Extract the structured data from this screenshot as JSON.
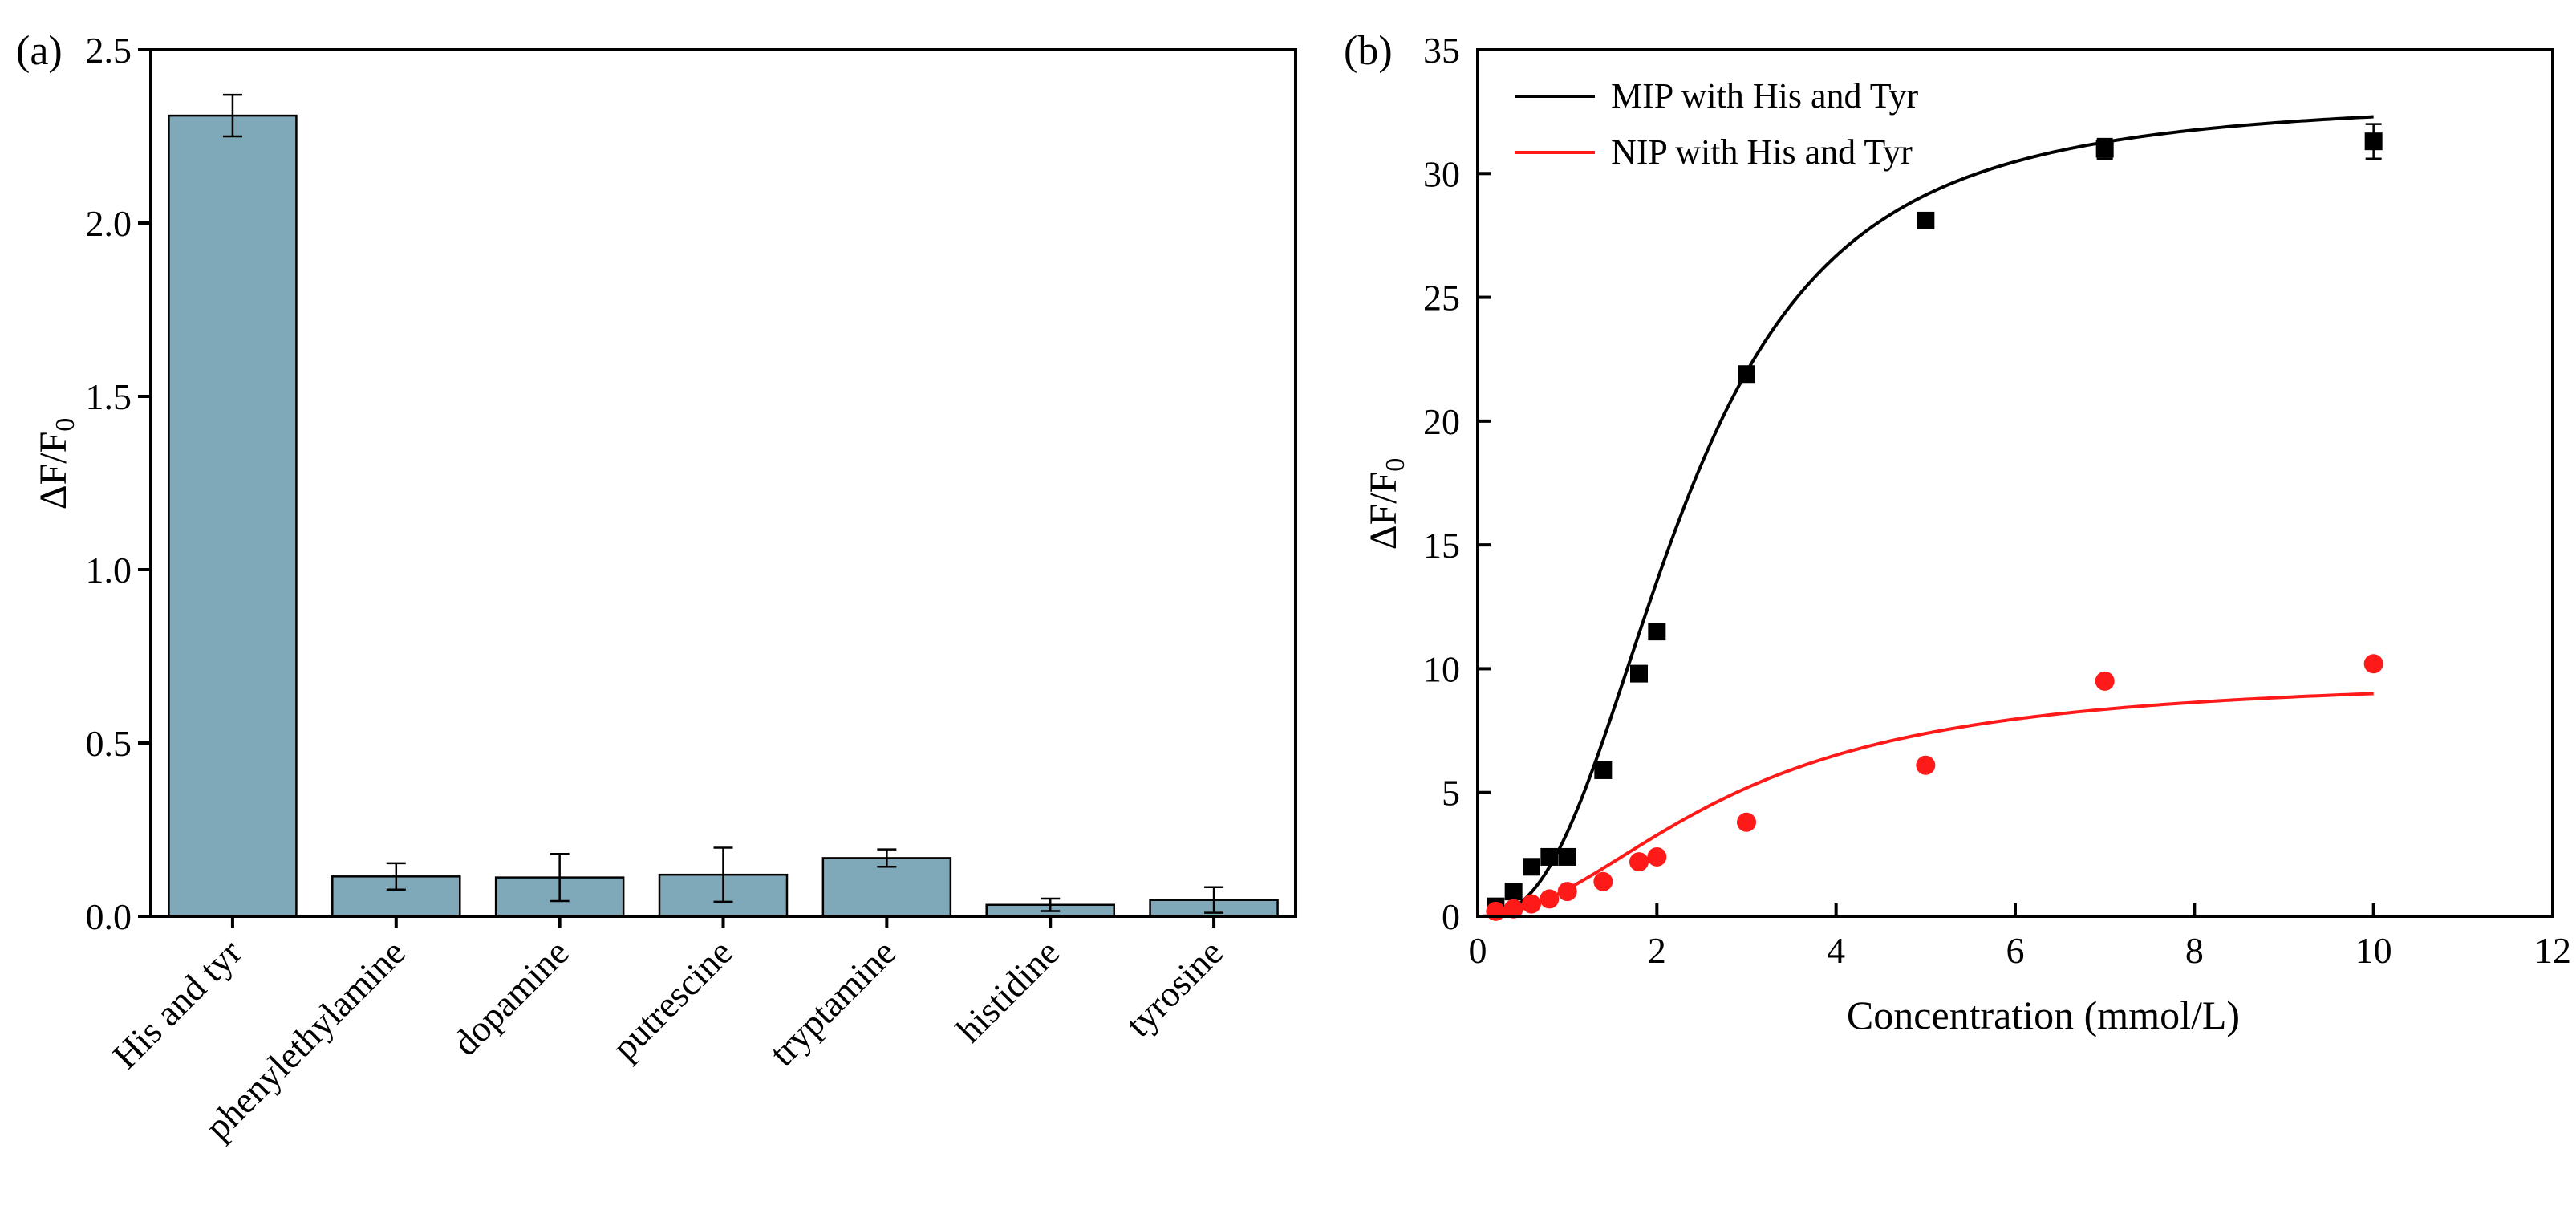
{
  "chart_data": [
    {
      "panel_label": "(a)",
      "type": "bar",
      "xlabel": "",
      "ylabel": "ΔF/F",
      "ylabel_sub": "0",
      "ylim": [
        0,
        2.5
      ],
      "yticks": [
        "0.0",
        "0.5",
        "1.0",
        "1.5",
        "2.0",
        "2.5"
      ],
      "categories": [
        "His and tyr",
        "phenylethylamine",
        "dopamine",
        "putrescine",
        "tryptamine",
        "histidine",
        "tyrosine"
      ],
      "values": [
        2.31,
        0.115,
        0.112,
        0.12,
        0.168,
        0.033,
        0.047
      ],
      "errors": [
        0.06,
        0.038,
        0.068,
        0.078,
        0.025,
        0.018,
        0.037
      ],
      "bar_color": "#7fa9b8",
      "grid": false
    },
    {
      "panel_label": "(b)",
      "type": "scatter",
      "xlabel": "Concentration (mmol/L)",
      "ylabel": "ΔF/F",
      "ylabel_sub": "0",
      "xlim": [
        0,
        12
      ],
      "ylim": [
        0,
        35
      ],
      "xticks": [
        "0",
        "2",
        "4",
        "6",
        "8",
        "10",
        "12"
      ],
      "yticks": [
        "0",
        "5",
        "10",
        "15",
        "20",
        "25",
        "30",
        "35"
      ],
      "legend_position": "top-left",
      "grid": false,
      "series": [
        {
          "name": "MIP with His and Tyr",
          "color": "#000000",
          "marker": "square",
          "x": [
            0.2,
            0.4,
            0.6,
            0.8,
            1.0,
            1.4,
            1.8,
            2.0,
            3.0,
            5.0,
            7.0,
            10.0
          ],
          "y": [
            0.4,
            1.0,
            2.0,
            2.4,
            2.4,
            5.9,
            9.8,
            11.5,
            21.9,
            28.1,
            31.0,
            31.3
          ],
          "errors": [
            0.1,
            0.1,
            0.1,
            0.1,
            0.1,
            0.1,
            0.1,
            0.1,
            0.1,
            0.1,
            0.4,
            0.7
          ],
          "fit": {
            "model": "hill",
            "max": 33.0,
            "k": 2.3,
            "n": 2.6,
            "x_range": [
              0,
              10
            ]
          }
        },
        {
          "name": "NIP with His and Tyr",
          "color": "#ff1a1a",
          "marker": "circle",
          "x": [
            0.2,
            0.4,
            0.6,
            0.8,
            1.0,
            1.4,
            1.8,
            2.0,
            3.0,
            5.0,
            7.0,
            10.0
          ],
          "y": [
            0.2,
            0.3,
            0.5,
            0.7,
            1.0,
            1.4,
            2.2,
            2.4,
            3.8,
            6.1,
            9.5,
            10.2
          ],
          "fit": {
            "model": "hill",
            "max": 9.7,
            "k": 2.8,
            "n": 2.0,
            "x_range": [
              0,
              10
            ]
          }
        }
      ]
    }
  ]
}
